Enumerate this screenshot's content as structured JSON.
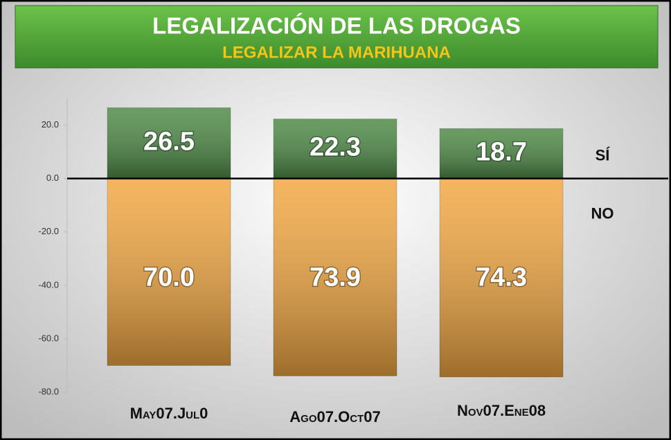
{
  "chart_data": {
    "type": "bar",
    "title": "LEGALIZACIÓN DE LAS DROGAS",
    "subtitle": "LEGALIZAR LA MARIHUANA",
    "categories": [
      "May07.Jul0",
      "Ago07.Oct07",
      "Nov07.Ene08"
    ],
    "series": [
      {
        "name": "SÍ",
        "color": "#4f8b47",
        "values": [
          26.5,
          22.3,
          18.7
        ]
      },
      {
        "name": "NO",
        "color": "#f2a843",
        "values": [
          -70.0,
          -73.9,
          -74.3
        ],
        "value_labels": [
          "70.0",
          "73.9",
          "74.3"
        ]
      }
    ],
    "ylim": [
      -80,
      30
    ],
    "yticks": [
      {
        "value": 20,
        "label": "20.0"
      },
      {
        "value": 0,
        "label": "0.0"
      },
      {
        "value": -20,
        "label": "-20.0"
      },
      {
        "value": -40,
        "label": "-40.0"
      },
      {
        "value": -60,
        "label": "-60.0"
      },
      {
        "value": -80,
        "label": "-80.0"
      }
    ]
  }
}
